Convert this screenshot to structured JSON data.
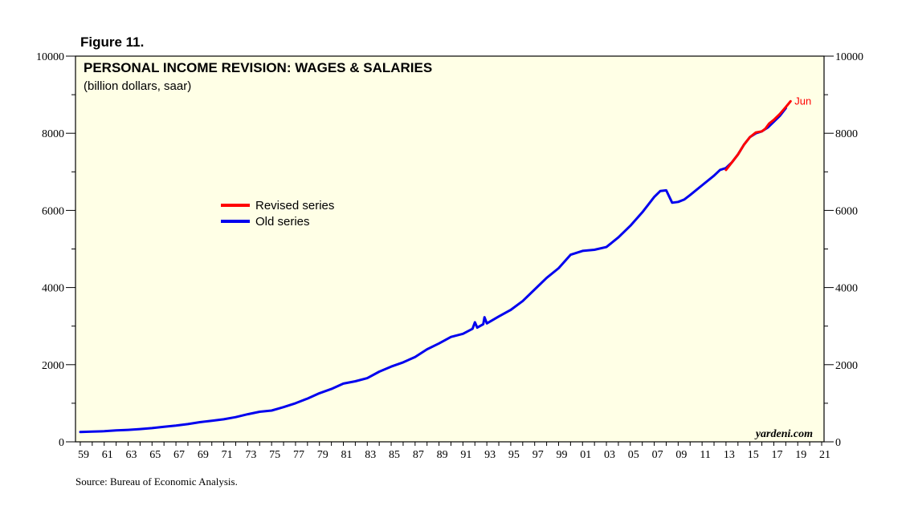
{
  "figure_label": "Figure 11.",
  "source": "Source: Bureau of Economic Analysis.",
  "watermark": "yardeni.com",
  "chart_data": {
    "type": "line",
    "title": "PERSONAL INCOME REVISION: WAGES & SALARIES",
    "subtitle": "(billion dollars, saar)",
    "xlabel": "",
    "ylabel": "",
    "xlim": [
      1958.6,
      2021.2
    ],
    "ylim": [
      0,
      10000
    ],
    "y_ticks": [
      0,
      2000,
      4000,
      6000,
      8000,
      10000
    ],
    "y_tick_labels": [
      "0",
      "2000",
      "4000",
      "6000",
      "8000",
      "10000"
    ],
    "x_tick_labels": [
      "59",
      "61",
      "63",
      "65",
      "67",
      "69",
      "71",
      "73",
      "75",
      "77",
      "79",
      "81",
      "83",
      "85",
      "87",
      "89",
      "91",
      "93",
      "95",
      "97",
      "99",
      "01",
      "03",
      "05",
      "07",
      "09",
      "11",
      "13",
      "15",
      "17",
      "19",
      "21"
    ],
    "x_tick_years": [
      1959,
      1961,
      1963,
      1965,
      1967,
      1969,
      1971,
      1973,
      1975,
      1977,
      1979,
      1981,
      1983,
      1985,
      1987,
      1989,
      1991,
      1993,
      1995,
      1997,
      1999,
      2001,
      2003,
      2005,
      2007,
      2009,
      2011,
      2013,
      2015,
      2017,
      2019,
      2021
    ],
    "legend_position": "center-left",
    "end_annotation": "Jun",
    "colors": {
      "plot_bg": "#ffffe6",
      "revised": "#ff0000",
      "old": "#0000ee",
      "annotation": "#ff0000",
      "axis": "#000000"
    },
    "series": [
      {
        "name": "Revised series",
        "color": "#ff0000",
        "x": [
          2013.0,
          2013.5,
          2014.0,
          2014.5,
          2015.0,
          2015.5,
          2016.0,
          2016.3,
          2016.6,
          2017.0,
          2017.5,
          2018.0,
          2018.4
        ],
        "y": [
          7050,
          7250,
          7450,
          7700,
          7900,
          8020,
          8050,
          8120,
          8250,
          8350,
          8500,
          8680,
          8830
        ]
      },
      {
        "name": "Old series",
        "color": "#0000ee",
        "x": [
          1959,
          1960,
          1961,
          1962,
          1963,
          1964,
          1965,
          1966,
          1967,
          1968,
          1969,
          1970,
          1971,
          1972,
          1973,
          1974,
          1975,
          1976,
          1977,
          1978,
          1979,
          1980,
          1981,
          1982,
          1983,
          1984,
          1985,
          1986,
          1987,
          1988,
          1989,
          1990,
          1991,
          1991.8,
          1992.0,
          1992.2,
          1992.7,
          1992.8,
          1993.0,
          1994,
          1995,
          1996,
          1997,
          1998,
          1999,
          2000,
          2001,
          2002,
          2003,
          2004,
          2005,
          2006,
          2007,
          2007.5,
          2008,
          2008.5,
          2009,
          2009.5,
          2010,
          2011,
          2012,
          2012.5,
          2013,
          2013.5,
          2014,
          2014.5,
          2015,
          2015.5,
          2016,
          2016.5,
          2017,
          2017.5,
          2018.0
        ],
        "y": [
          255,
          265,
          275,
          295,
          310,
          330,
          355,
          390,
          420,
          460,
          510,
          545,
          585,
          640,
          715,
          780,
          810,
          900,
          1000,
          1120,
          1260,
          1370,
          1510,
          1570,
          1650,
          1820,
          1950,
          2060,
          2200,
          2400,
          2550,
          2720,
          2800,
          2930,
          3100,
          2960,
          3050,
          3230,
          3070,
          3250,
          3420,
          3650,
          3950,
          4250,
          4500,
          4850,
          4950,
          4980,
          5050,
          5300,
          5600,
          5950,
          6350,
          6500,
          6520,
          6200,
          6220,
          6280,
          6400,
          6650,
          6900,
          7050,
          7100,
          7250,
          7450,
          7700,
          7900,
          8000,
          8050,
          8150,
          8300,
          8450,
          8650
        ]
      }
    ]
  }
}
